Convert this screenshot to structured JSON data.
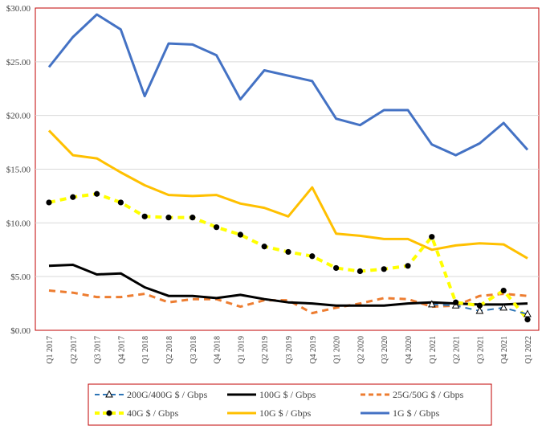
{
  "chart_data": {
    "type": "line",
    "title": "",
    "xlabel": "",
    "ylabel": "",
    "ylim": [
      0,
      30
    ],
    "y_ticks": [
      0,
      5,
      10,
      15,
      20,
      25,
      30
    ],
    "y_tick_labels": [
      "$0.00",
      "$5.00",
      "$10.00",
      "$15.00",
      "$20.00",
      "$25.00",
      "$30.00"
    ],
    "grid": "horizontal",
    "legend_position": "bottom",
    "categories": [
      "Q1 2017",
      "Q2 2017",
      "Q3 2017",
      "Q4 2017",
      "Q1 2018",
      "Q2 2018",
      "Q3 2018",
      "Q4 2018",
      "Q1 2019",
      "Q2 2019",
      "Q3 2019",
      "Q4 2019",
      "Q1 2020",
      "Q2 2020",
      "Q3 2020",
      "Q4 2020",
      "Q1 2021",
      "Q2 2021",
      "Q3 2021",
      "Q4 2021",
      "Q1 2022"
    ],
    "series": [
      {
        "name": "200G/400G $ / Gbps",
        "color": "#2E75B6",
        "style": "dash",
        "width": 2,
        "marker": "triangle",
        "values": [
          null,
          null,
          null,
          null,
          null,
          null,
          null,
          null,
          null,
          null,
          null,
          null,
          null,
          null,
          null,
          null,
          2.4,
          2.3,
          1.8,
          2.1,
          1.5
        ]
      },
      {
        "name": "100G $ / Gbps",
        "color": "#000000",
        "style": "solid",
        "width": 3,
        "marker": "none",
        "values": [
          6.0,
          6.1,
          5.2,
          5.3,
          4.0,
          3.2,
          3.2,
          3.0,
          3.3,
          2.9,
          2.6,
          2.5,
          2.3,
          2.3,
          2.3,
          2.5,
          2.6,
          2.5,
          2.4,
          2.4,
          2.5
        ]
      },
      {
        "name": "25G/50G $ / Gbps",
        "color": "#ED7D31",
        "style": "dash",
        "width": 3,
        "marker": "none",
        "values": [
          3.7,
          3.5,
          3.1,
          3.1,
          3.4,
          2.6,
          2.9,
          2.9,
          2.2,
          2.8,
          2.8,
          1.6,
          2.1,
          2.5,
          3.0,
          2.9,
          2.2,
          2.3,
          3.2,
          3.4,
          3.2
        ]
      },
      {
        "name": "40G $ / Gbps",
        "color": "#FFFF00",
        "style": "dash",
        "width": 4,
        "marker": "circle",
        "values": [
          11.9,
          12.4,
          12.7,
          11.9,
          10.6,
          10.5,
          10.5,
          9.6,
          8.9,
          7.8,
          7.3,
          6.9,
          5.8,
          5.5,
          5.7,
          6.0,
          8.7,
          2.6,
          2.3,
          3.7,
          1.0
        ]
      },
      {
        "name": "10G $ / Gbps",
        "color": "#FFC000",
        "style": "solid",
        "width": 3,
        "marker": "none",
        "values": [
          18.6,
          16.3,
          16.0,
          14.7,
          13.5,
          12.6,
          12.5,
          12.6,
          11.8,
          11.4,
          10.6,
          13.3,
          9.0,
          8.8,
          8.5,
          8.5,
          7.5,
          7.9,
          8.1,
          8.0,
          6.7
        ]
      },
      {
        "name": "1G $ / Gbps",
        "color": "#4472C4",
        "style": "solid",
        "width": 3,
        "marker": "none",
        "values": [
          24.5,
          27.3,
          29.4,
          28.0,
          21.8,
          26.7,
          26.6,
          25.6,
          21.5,
          24.2,
          23.7,
          23.2,
          19.7,
          19.1,
          20.5,
          20.5,
          17.3,
          16.3,
          17.4,
          19.3,
          16.8
        ]
      }
    ]
  }
}
